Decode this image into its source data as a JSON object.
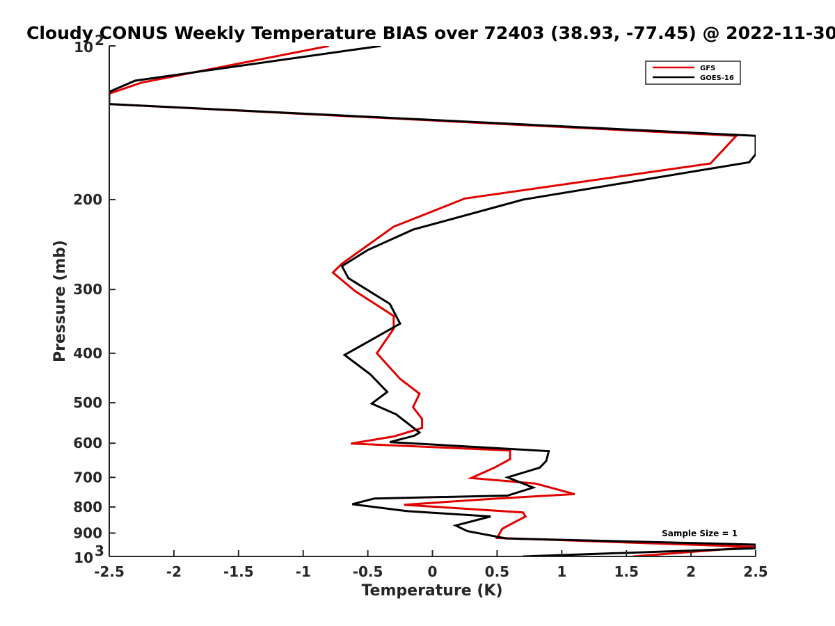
{
  "chart_data": {
    "type": "line",
    "title": "Cloudy CONUS Weekly Temperature BIAS over 72403 (38.93, -77.45) @ 2022-11-30",
    "xlabel": "Temperature (K)",
    "ylabel": "Pressure (mb)",
    "xlim": [
      -2.5,
      2.5
    ],
    "ylim": [
      1000,
      100
    ],
    "y_scale": "log",
    "x_ticks": [
      -2.5,
      -2,
      -1.5,
      -1,
      -0.5,
      0,
      0.5,
      1,
      1.5,
      2,
      2.5
    ],
    "x_tick_labels": [
      "-2.5",
      "-2",
      "-1.5",
      "-1",
      "-0.5",
      "0",
      "0.5",
      "1",
      "1.5",
      "2",
      "2.5"
    ],
    "y_ticks": [
      {
        "value": 100,
        "base": "10",
        "exp": "2"
      },
      {
        "value": 200,
        "label": "200"
      },
      {
        "value": 300,
        "label": "300"
      },
      {
        "value": 400,
        "label": "400"
      },
      {
        "value": 500,
        "label": "500"
      },
      {
        "value": 600,
        "label": "600"
      },
      {
        "value": 700,
        "label": "700"
      },
      {
        "value": 800,
        "label": "800"
      },
      {
        "value": 900,
        "label": "900"
      },
      {
        "value": 1000,
        "base": "10",
        "exp": "3"
      }
    ],
    "grid": false,
    "legend_position": "top-right",
    "annotation": "Sample Size = 1",
    "series": [
      {
        "name": "GFS",
        "color": "#e00000",
        "points": [
          [
            -0.8,
            100
          ],
          [
            -2.25,
            118
          ],
          [
            -2.5,
            124
          ],
          [
            -2.5,
            130
          ],
          [
            2.35,
            150
          ],
          [
            2.15,
            170
          ],
          [
            0.25,
            199
          ],
          [
            -0.3,
            226
          ],
          [
            -0.7,
            267
          ],
          [
            -0.77,
            278
          ],
          [
            -0.6,
            302
          ],
          [
            -0.3,
            338
          ],
          [
            -0.3,
            358
          ],
          [
            -0.43,
            400
          ],
          [
            -0.25,
            449
          ],
          [
            -0.1,
            480
          ],
          [
            -0.15,
            510
          ],
          [
            -0.08,
            538
          ],
          [
            -0.08,
            560
          ],
          [
            -0.3,
            582
          ],
          [
            -0.63,
            601
          ],
          [
            0.6,
            620
          ],
          [
            0.6,
            645
          ],
          [
            0.48,
            670
          ],
          [
            0.3,
            702
          ],
          [
            0.8,
            720
          ],
          [
            1.1,
            755
          ],
          [
            0.5,
            770
          ],
          [
            -0.22,
            792
          ],
          [
            0.7,
            820
          ],
          [
            0.72,
            835
          ],
          [
            0.63,
            858
          ],
          [
            0.54,
            883
          ],
          [
            0.5,
            920
          ],
          [
            2.5,
            958
          ],
          [
            1.55,
            1000
          ]
        ]
      },
      {
        "name": "GOES-16",
        "color": "#000000",
        "points": [
          [
            -0.4,
            100
          ],
          [
            -2.3,
            117
          ],
          [
            -2.5,
            123
          ],
          [
            -2.5,
            130
          ],
          [
            2.5,
            150
          ],
          [
            2.5,
            163
          ],
          [
            2.45,
            169
          ],
          [
            0.7,
            200
          ],
          [
            -0.15,
            229
          ],
          [
            -0.5,
            251
          ],
          [
            -0.7,
            270
          ],
          [
            -0.65,
            285
          ],
          [
            -0.33,
            320
          ],
          [
            -0.25,
            350
          ],
          [
            -0.5,
            380
          ],
          [
            -0.68,
            403
          ],
          [
            -0.48,
            440
          ],
          [
            -0.35,
            476
          ],
          [
            -0.47,
            502
          ],
          [
            -0.28,
            527
          ],
          [
            -0.1,
            572
          ],
          [
            -0.14,
            580
          ],
          [
            -0.33,
            597
          ],
          [
            0.9,
            622
          ],
          [
            0.88,
            650
          ],
          [
            0.83,
            670
          ],
          [
            0.58,
            700
          ],
          [
            0.78,
            733
          ],
          [
            0.58,
            760
          ],
          [
            -0.45,
            770
          ],
          [
            -0.62,
            790
          ],
          [
            -0.2,
            815
          ],
          [
            0.45,
            835
          ],
          [
            0.18,
            870
          ],
          [
            0.27,
            892
          ],
          [
            0.57,
            922
          ],
          [
            2.5,
            948
          ],
          [
            2.5,
            964
          ],
          [
            0.7,
            1000
          ]
        ]
      }
    ]
  }
}
